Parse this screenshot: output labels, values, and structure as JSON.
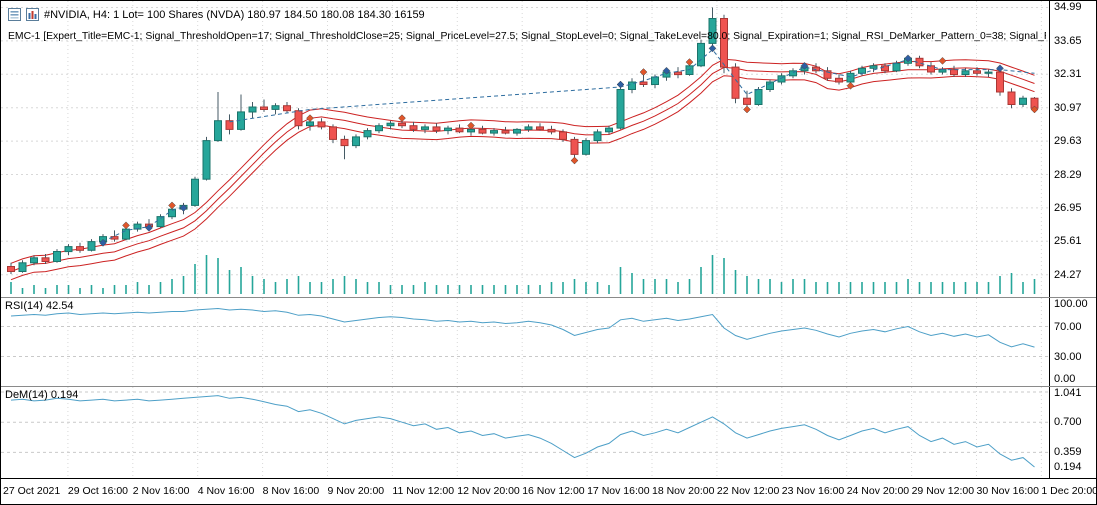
{
  "window": {
    "title_line": "#NVIDIA, H4:  1 Lot= 100 Shares (NVDA)  180.97 184.50 180.08 184.30  16159",
    "expert_line": "EMC-1 [Expert_Title=EMC-1; Signal_ThresholdOpen=17; Signal_ThresholdClose=25; Signal_PriceLevel=27.5; Signal_StopLevel=0; Signal_TakeLevel=80.0; Signal_Expiration=1; Signal_RSI_DeMarker_Pattern_0=38; Signal_RSI_DeMarker_Pattern_1"
  },
  "indicators": {
    "rsi_label": "RSI(14) 42.54",
    "dem_label": "DeM(14) 0.194"
  },
  "axes": {
    "price_labels": [
      "34.99",
      "33.65",
      "32.31",
      "30.97",
      "29.63",
      "28.29",
      "26.95",
      "25.61",
      "24.27"
    ],
    "rsi_labels": [
      "100.00",
      "70.00",
      "30.00",
      "0.00"
    ],
    "dem_labels": [
      "1.041",
      "0.700",
      "0.359"
    ],
    "dem_current": "0.194",
    "time_labels": [
      "27 Oct 2021",
      "29 Oct 16:00",
      "2 Nov 16:00",
      "4 Nov 16:00",
      "8 Nov 16:00",
      "9 Nov 20:00",
      "11 Nov 12:00",
      "12 Nov 20:00",
      "16 Nov 12:00",
      "17 Nov 16:00",
      "18 Nov 20:00",
      "22 Nov 12:00",
      "23 Nov 16:00",
      "24 Nov 20:00",
      "29 Nov 12:00",
      "30 Nov 16:00",
      "1 Dec 20:00"
    ]
  },
  "colors": {
    "up": "#26a69a",
    "up_border": "#1b746b",
    "down": "#ef5350",
    "down_border": "#a93734",
    "wick": "#455a64",
    "envelope": "#cc2222",
    "signal": "#2f6ea0",
    "indicator": "#4d9fc7",
    "volume": "#26a69a",
    "grid": "#d8d8d8",
    "grid_dark": "#c9c9c9",
    "marker_blue": "#2e5fa3",
    "marker_red": "#e0562b"
  },
  "chart_data": {
    "type": "candlestick",
    "symbol": "#NVIDIA",
    "timeframe": "H4",
    "title": "#NVIDIA H4 with Envelopes, signal line, RSI(14) and DeMarker(14)",
    "ylim": [
      23.38,
      35.25
    ],
    "ohlc_order": "open,high,low,close",
    "ohlc": [
      [
        24.6,
        24.75,
        24.3,
        24.4
      ],
      [
        24.4,
        24.85,
        24.35,
        24.75
      ],
      [
        24.75,
        25.05,
        24.65,
        24.95
      ],
      [
        24.95,
        25.1,
        24.7,
        24.8
      ],
      [
        24.8,
        25.3,
        24.75,
        25.2
      ],
      [
        25.2,
        25.5,
        25.05,
        25.4
      ],
      [
        25.4,
        25.55,
        25.15,
        25.25
      ],
      [
        25.25,
        25.7,
        25.2,
        25.6
      ],
      [
        25.6,
        25.9,
        25.5,
        25.8
      ],
      [
        25.8,
        26.05,
        25.6,
        25.7
      ],
      [
        25.7,
        26.2,
        25.65,
        26.1
      ],
      [
        26.1,
        26.4,
        26.0,
        26.3
      ],
      [
        26.3,
        26.5,
        26.1,
        26.2
      ],
      [
        26.2,
        26.7,
        26.15,
        26.6
      ],
      [
        26.6,
        27.0,
        26.5,
        26.9
      ],
      [
        26.9,
        27.15,
        26.7,
        27.05
      ],
      [
        27.05,
        28.2,
        27.0,
        28.1
      ],
      [
        28.1,
        29.8,
        28.05,
        29.65
      ],
      [
        29.65,
        31.6,
        29.6,
        30.45
      ],
      [
        30.45,
        30.7,
        29.9,
        30.1
      ],
      [
        30.1,
        31.5,
        30.05,
        30.8
      ],
      [
        30.8,
        31.2,
        30.55,
        31.0
      ],
      [
        31.0,
        31.3,
        30.8,
        30.9
      ],
      [
        30.9,
        31.15,
        30.7,
        31.05
      ],
      [
        31.05,
        31.2,
        30.75,
        30.85
      ],
      [
        30.85,
        30.95,
        30.1,
        30.25
      ],
      [
        30.25,
        30.5,
        30.05,
        30.4
      ],
      [
        30.4,
        30.55,
        30.1,
        30.2
      ],
      [
        30.2,
        30.3,
        29.55,
        29.7
      ],
      [
        29.7,
        29.85,
        28.9,
        29.45
      ],
      [
        29.45,
        29.9,
        29.35,
        29.8
      ],
      [
        29.8,
        30.15,
        29.7,
        30.05
      ],
      [
        30.05,
        30.35,
        29.95,
        30.25
      ],
      [
        30.25,
        30.45,
        30.1,
        30.35
      ],
      [
        30.35,
        30.5,
        30.15,
        30.25
      ],
      [
        30.25,
        30.4,
        30.0,
        30.1
      ],
      [
        30.1,
        30.3,
        29.95,
        30.2
      ],
      [
        30.2,
        30.35,
        29.95,
        30.05
      ],
      [
        30.05,
        30.25,
        29.9,
        30.15
      ],
      [
        30.15,
        30.3,
        29.95,
        30.0
      ],
      [
        30.0,
        30.2,
        29.85,
        30.1
      ],
      [
        30.1,
        30.25,
        29.9,
        29.95
      ],
      [
        29.95,
        30.15,
        29.85,
        30.05
      ],
      [
        30.05,
        30.2,
        29.9,
        29.95
      ],
      [
        29.95,
        30.15,
        29.85,
        30.1
      ],
      [
        30.1,
        30.3,
        30.0,
        30.2
      ],
      [
        30.2,
        30.35,
        30.05,
        30.1
      ],
      [
        30.1,
        30.25,
        29.9,
        30.0
      ],
      [
        30.0,
        30.1,
        29.6,
        29.7
      ],
      [
        29.7,
        29.8,
        28.9,
        29.1
      ],
      [
        29.1,
        29.75,
        29.05,
        29.65
      ],
      [
        29.65,
        30.1,
        29.55,
        30.0
      ],
      [
        30.0,
        30.25,
        29.9,
        30.15
      ],
      [
        30.15,
        31.85,
        30.1,
        31.7
      ],
      [
        31.7,
        32.15,
        31.55,
        32.0
      ],
      [
        32.0,
        32.35,
        31.8,
        31.9
      ],
      [
        31.9,
        32.3,
        31.75,
        32.2
      ],
      [
        32.2,
        32.5,
        32.05,
        32.4
      ],
      [
        32.4,
        32.6,
        32.15,
        32.3
      ],
      [
        32.3,
        32.75,
        32.25,
        32.65
      ],
      [
        32.65,
        33.7,
        32.6,
        33.55
      ],
      [
        33.55,
        34.99,
        33.45,
        34.55
      ],
      [
        34.55,
        34.7,
        32.35,
        32.6
      ],
      [
        32.6,
        32.75,
        31.15,
        31.35
      ],
      [
        31.35,
        31.65,
        30.95,
        31.1
      ],
      [
        31.1,
        31.8,
        31.05,
        31.7
      ],
      [
        31.7,
        32.1,
        31.6,
        32.0
      ],
      [
        32.0,
        32.35,
        31.9,
        32.25
      ],
      [
        32.25,
        32.55,
        32.15,
        32.45
      ],
      [
        32.45,
        32.7,
        32.3,
        32.6
      ],
      [
        32.6,
        32.75,
        32.35,
        32.45
      ],
      [
        32.45,
        32.6,
        32.05,
        32.15
      ],
      [
        32.15,
        32.3,
        31.9,
        32.0
      ],
      [
        32.0,
        32.45,
        31.95,
        32.35
      ],
      [
        32.35,
        32.65,
        32.25,
        32.55
      ],
      [
        32.55,
        32.75,
        32.4,
        32.65
      ],
      [
        32.65,
        32.75,
        32.35,
        32.45
      ],
      [
        32.45,
        32.85,
        32.4,
        32.75
      ],
      [
        32.75,
        33.05,
        32.65,
        32.95
      ],
      [
        32.95,
        33.05,
        32.55,
        32.65
      ],
      [
        32.65,
        32.8,
        32.3,
        32.4
      ],
      [
        32.4,
        32.6,
        32.3,
        32.5
      ],
      [
        32.5,
        32.65,
        32.2,
        32.3
      ],
      [
        32.3,
        32.55,
        32.2,
        32.45
      ],
      [
        32.45,
        32.6,
        32.25,
        32.35
      ],
      [
        32.35,
        32.5,
        32.2,
        32.4
      ],
      [
        32.4,
        32.5,
        31.45,
        31.6
      ],
      [
        31.6,
        31.75,
        30.95,
        31.1
      ],
      [
        31.1,
        31.45,
        31.0,
        31.35
      ],
      [
        31.35,
        31.4,
        30.85,
        30.95
      ]
    ],
    "volume": [
      4,
      2,
      3,
      2,
      3,
      3,
      2,
      3,
      2,
      3,
      3,
      4,
      3,
      4,
      5,
      6,
      10,
      13,
      12,
      8,
      9,
      6,
      5,
      4,
      5,
      6,
      4,
      4,
      5,
      6,
      5,
      4,
      4,
      3,
      3,
      3,
      4,
      3,
      3,
      3,
      3,
      3,
      3,
      3,
      3,
      3,
      3,
      4,
      4,
      5,
      4,
      4,
      3,
      9,
      7,
      5,
      5,
      5,
      4,
      5,
      9,
      13,
      12,
      8,
      6,
      5,
      5,
      4,
      5,
      5,
      4,
      4,
      4,
      4,
      4,
      4,
      4,
      4,
      5,
      4,
      4,
      4,
      4,
      4,
      4,
      4,
      6,
      7,
      4,
      5
    ],
    "envelope": {
      "period": 10,
      "deviation": 0.33
    },
    "signal_segments": [
      [
        [
          8,
          25.6
        ],
        [
          10,
          26.05
        ],
        [
          12,
          26.2
        ],
        [
          14,
          26.85
        ],
        [
          15,
          27.0
        ]
      ],
      [
        [
          19,
          30.4
        ],
        [
          26,
          30.9
        ],
        [
          53,
          31.8
        ],
        [
          55,
          32.05
        ],
        [
          57,
          32.35
        ],
        [
          59,
          32.5
        ],
        [
          61,
          33.3
        ],
        [
          64,
          31.5
        ],
        [
          69,
          32.6
        ],
        [
          73,
          32.2
        ],
        [
          78,
          32.9
        ],
        [
          81,
          32.5
        ],
        [
          86,
          32.5
        ],
        [
          89,
          32.35
        ]
      ]
    ],
    "markers": {
      "blue": [
        [
          8,
          25.55
        ],
        [
          12,
          26.15
        ],
        [
          15,
          26.95
        ],
        [
          53,
          31.9
        ],
        [
          57,
          32.45
        ],
        [
          61,
          33.35
        ],
        [
          69,
          32.65
        ],
        [
          78,
          32.95
        ],
        [
          86,
          32.55
        ]
      ],
      "red": [
        [
          10,
          26.25
        ],
        [
          14,
          27.05
        ],
        [
          26,
          30.55
        ],
        [
          34,
          30.55
        ],
        [
          40,
          30.25
        ],
        [
          49,
          28.85
        ],
        [
          55,
          32.4
        ],
        [
          59,
          32.8
        ],
        [
          64,
          30.9
        ],
        [
          73,
          31.85
        ],
        [
          81,
          32.85
        ],
        [
          89,
          30.9
        ]
      ]
    },
    "rsi": {
      "period": 14,
      "current": 42.54,
      "levels": [
        100,
        70,
        30,
        0
      ],
      "values": [
        84,
        85,
        86,
        85,
        87,
        88,
        86,
        87,
        88,
        87,
        88,
        89,
        88,
        89,
        90,
        90,
        92,
        93,
        94,
        92,
        93,
        92,
        90,
        91,
        89,
        85,
        86,
        84,
        80,
        76,
        78,
        80,
        82,
        83,
        82,
        80,
        79,
        77,
        78,
        76,
        77,
        75,
        76,
        74,
        75,
        77,
        75,
        72,
        66,
        58,
        62,
        66,
        68,
        79,
        81,
        77,
        79,
        81,
        78,
        80,
        83,
        86,
        68,
        58,
        53,
        57,
        61,
        64,
        66,
        68,
        65,
        60,
        56,
        61,
        64,
        66,
        63,
        67,
        70,
        63,
        58,
        61,
        57,
        60,
        56,
        59,
        49,
        43,
        47,
        42.5
      ]
    },
    "dem": {
      "period": 14,
      "current": 0.194,
      "levels": [
        1.041,
        0.7,
        0.359
      ],
      "values": [
        0.95,
        0.96,
        0.94,
        0.95,
        0.97,
        0.96,
        0.94,
        0.95,
        0.96,
        0.94,
        0.95,
        0.96,
        0.94,
        0.95,
        0.96,
        0.97,
        0.98,
        0.99,
        1.0,
        0.97,
        0.98,
        0.96,
        0.93,
        0.9,
        0.88,
        0.82,
        0.84,
        0.8,
        0.74,
        0.68,
        0.72,
        0.74,
        0.76,
        0.74,
        0.7,
        0.66,
        0.68,
        0.62,
        0.64,
        0.58,
        0.6,
        0.55,
        0.57,
        0.52,
        0.54,
        0.56,
        0.52,
        0.46,
        0.38,
        0.3,
        0.35,
        0.42,
        0.46,
        0.56,
        0.6,
        0.55,
        0.58,
        0.62,
        0.58,
        0.64,
        0.7,
        0.76,
        0.68,
        0.58,
        0.52,
        0.56,
        0.6,
        0.63,
        0.65,
        0.67,
        0.62,
        0.55,
        0.5,
        0.55,
        0.6,
        0.63,
        0.58,
        0.62,
        0.65,
        0.55,
        0.48,
        0.52,
        0.45,
        0.48,
        0.42,
        0.45,
        0.34,
        0.27,
        0.3,
        0.194
      ]
    }
  }
}
